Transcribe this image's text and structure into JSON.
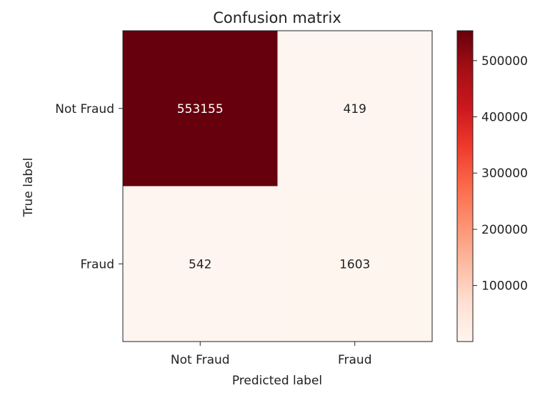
{
  "chart_data": {
    "type": "heatmap",
    "title": "Confusion matrix",
    "xlabel": "Predicted label",
    "ylabel": "True label",
    "x_categories": [
      "Not Fraud",
      "Fraud"
    ],
    "y_categories": [
      "Not Fraud",
      "Fraud"
    ],
    "values": [
      [
        553155,
        419
      ],
      [
        542,
        1603
      ]
    ],
    "colormap": "Reds",
    "colorbar": {
      "ticks": [
        100000,
        200000,
        300000,
        400000,
        500000
      ],
      "tick_labels": [
        "100000",
        "200000",
        "300000",
        "400000",
        "500000"
      ],
      "range": [
        419,
        553155
      ]
    },
    "colors": {
      "low": "#fff5f0",
      "high": "#67000d"
    }
  }
}
